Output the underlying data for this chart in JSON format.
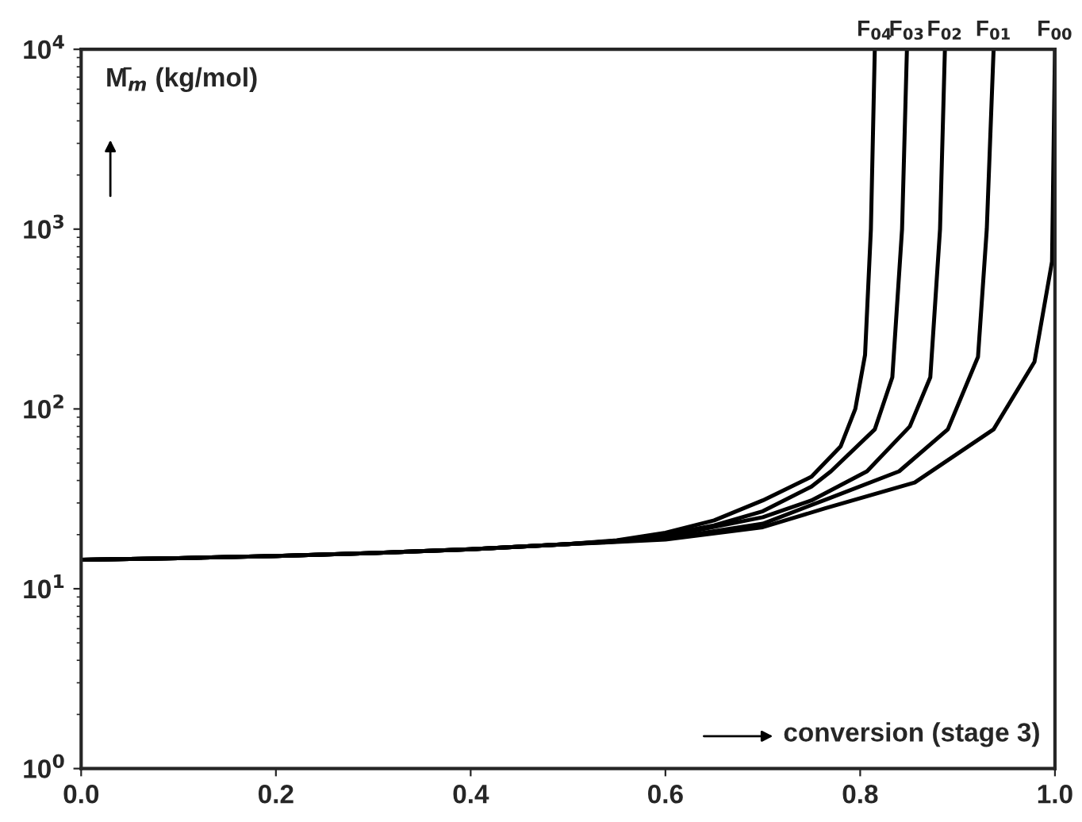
{
  "chart_data": {
    "type": "line",
    "xlabel": "conversion (stage 3)",
    "ylabel": "M̄$_{m}$ (kg/mol)",
    "log": "y",
    "xlim": [
      0,
      1.0
    ],
    "ylim": [
      1,
      10000
    ],
    "xticks": [
      {
        "value": 0,
        "label": "0.0"
      },
      0.2,
      0.4,
      0.6,
      0.8,
      {
        "value": 1.0,
        "label": "1.0"
      }
    ],
    "yticks": [
      {
        "value": 1,
        "label": "10$^{0}$"
      },
      {
        "value": 10,
        "label": "10$^{1}$"
      },
      {
        "value": 100,
        "label": "10$^{2}$"
      },
      {
        "value": 1000,
        "label": "10$^{3}$"
      },
      {
        "value": 10000,
        "label": "10$^{4}$"
      }
    ],
    "grid": false,
    "legend": false,
    "marker": "none",
    "line_style": "solid",
    "series": [
      {
        "name": "F$_{04}$",
        "color": "#000000",
        "x": [
          0,
          0.1,
          0.2,
          0.3,
          0.4,
          0.5,
          0.55,
          0.6,
          0.65,
          0.7,
          0.75,
          0.78,
          0.795,
          0.805,
          0.811,
          0.815
        ],
        "values": [
          14.5,
          14.8,
          15.2,
          15.8,
          16.6,
          17.7,
          18.6,
          20.5,
          24,
          31,
          42,
          62,
          100,
          200,
          1000,
          10000
        ]
      },
      {
        "name": "F$_{03}$",
        "color": "#000000",
        "x": [
          0,
          0.1,
          0.2,
          0.3,
          0.4,
          0.5,
          0.55,
          0.6,
          0.65,
          0.7,
          0.75,
          0.77,
          0.815,
          0.833,
          0.843,
          0.848
        ],
        "values": [
          14.5,
          14.8,
          15.2,
          15.8,
          16.6,
          17.7,
          18.5,
          20,
          22.5,
          27,
          37,
          45,
          77,
          150,
          1000,
          10000
        ]
      },
      {
        "name": "F$_{02}$",
        "color": "#000000",
        "x": [
          0,
          0.1,
          0.2,
          0.3,
          0.4,
          0.5,
          0.55,
          0.6,
          0.7,
          0.75,
          0.807,
          0.851,
          0.872,
          0.882,
          0.887
        ],
        "values": [
          14.5,
          14.8,
          15.2,
          15.8,
          16.6,
          17.7,
          18.4,
          19.5,
          25,
          31,
          45,
          80,
          150,
          1000,
          10000
        ]
      },
      {
        "name": "F$_{01}$",
        "color": "#000000",
        "x": [
          0,
          0.1,
          0.2,
          0.3,
          0.4,
          0.5,
          0.55,
          0.6,
          0.7,
          0.769,
          0.84,
          0.89,
          0.921,
          0.93,
          0.937
        ],
        "values": [
          14.5,
          14.8,
          15.2,
          15.8,
          16.6,
          17.7,
          18.3,
          19,
          23,
          32,
          45,
          77,
          195,
          1000,
          10000
        ]
      },
      {
        "name": "F$_{00}$",
        "color": "#000000",
        "x": [
          0,
          0.1,
          0.2,
          0.3,
          0.4,
          0.5,
          0.55,
          0.6,
          0.7,
          0.764,
          0.856,
          0.937,
          0.979,
          0.997,
          1.0
        ],
        "values": [
          14.5,
          14.8,
          15.2,
          15.8,
          16.6,
          17.7,
          18.2,
          18.8,
          22,
          28,
          39,
          77,
          183,
          660,
          10000
        ]
      }
    ]
  }
}
